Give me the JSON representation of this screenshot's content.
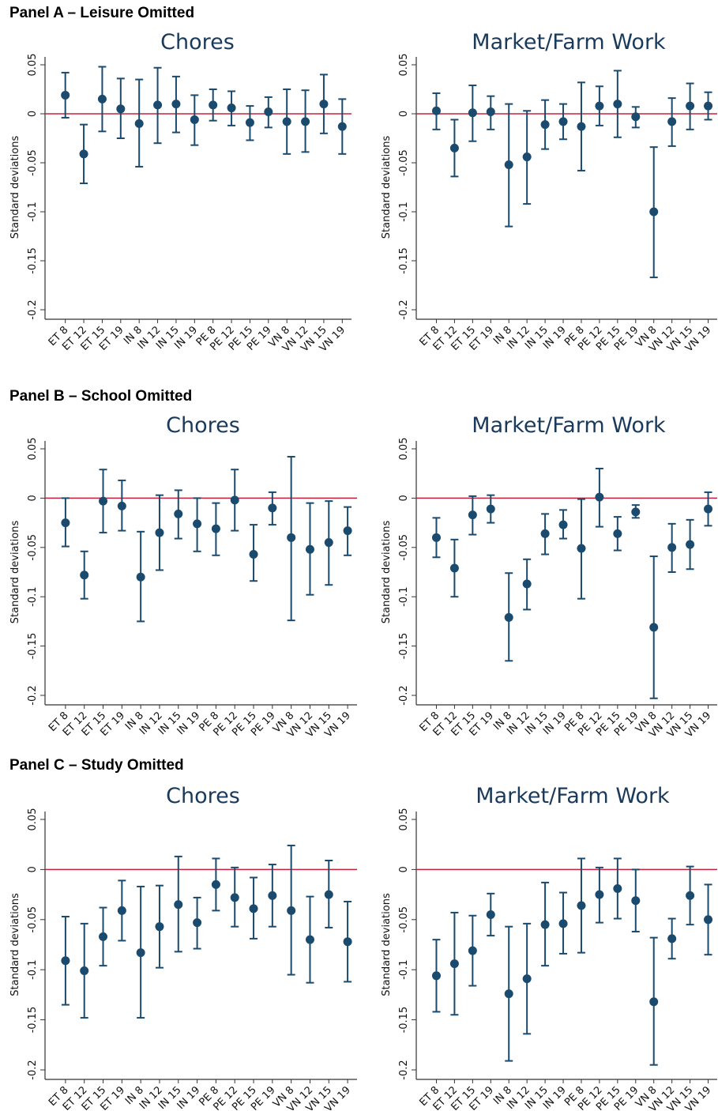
{
  "panels": [
    {
      "label": "Panel A – Leisure Omitted"
    },
    {
      "label": "Panel B – School Omitted"
    },
    {
      "label": "Panel C – Study Omitted"
    }
  ],
  "colors": {
    "marker": "#1a4a6e",
    "zero_line": "#c8203c",
    "axis": "#333333"
  },
  "chart_data": [
    {
      "type": "scatter",
      "panel": "A",
      "title": "Chores",
      "ylabel": "Standard deviations",
      "ylim": [
        -0.2,
        0.05
      ],
      "yticks": [
        "0.05",
        "0",
        "-0.05",
        "-0.1",
        "-0.15",
        "-0.2"
      ],
      "categories": [
        "ET 8",
        "ET 12",
        "ET 15",
        "ET 19",
        "IN 8",
        "IN 12",
        "IN 15",
        "IN 19",
        "PE 8",
        "PE 12",
        "PE 15",
        "PE 19",
        "VN 8",
        "VN 12",
        "VN 15",
        "VN 19"
      ],
      "estimate": [
        0.019,
        -0.041,
        0.015,
        0.005,
        -0.01,
        0.009,
        0.01,
        -0.006,
        0.009,
        0.006,
        -0.009,
        0.002,
        -0.008,
        -0.008,
        0.01,
        -0.013
      ],
      "ci_low": [
        -0.004,
        -0.071,
        -0.018,
        -0.025,
        -0.054,
        -0.03,
        -0.019,
        -0.032,
        -0.007,
        -0.012,
        -0.027,
        -0.014,
        -0.041,
        -0.039,
        -0.02,
        -0.041
      ],
      "ci_high": [
        0.042,
        -0.011,
        0.048,
        0.036,
        0.035,
        0.047,
        0.038,
        0.019,
        0.025,
        0.023,
        0.008,
        0.017,
        0.025,
        0.024,
        0.04,
        0.015
      ]
    },
    {
      "type": "scatter",
      "panel": "A",
      "title": "Market/Farm Work",
      "ylabel": "Standard deviations",
      "ylim": [
        -0.2,
        0.05
      ],
      "yticks": [
        "0.05",
        "0",
        "-0.05",
        "-0.1",
        "-0.15",
        "-0.2"
      ],
      "categories": [
        "ET 8",
        "ET 12",
        "ET 15",
        "ET 19",
        "IN 8",
        "IN 12",
        "IN 15",
        "IN 19",
        "PE 8",
        "PE 12",
        "PE 15",
        "PE 19",
        "VN 8",
        "VN 12",
        "VN 15",
        "VN 19"
      ],
      "estimate": [
        0.003,
        -0.035,
        0.001,
        0.002,
        -0.052,
        -0.044,
        -0.011,
        -0.008,
        -0.013,
        0.008,
        0.01,
        -0.003,
        -0.1,
        -0.008,
        0.008,
        0.008
      ],
      "ci_low": [
        -0.016,
        -0.064,
        -0.028,
        -0.016,
        -0.115,
        -0.092,
        -0.036,
        -0.026,
        -0.058,
        -0.012,
        -0.024,
        -0.014,
        -0.167,
        -0.033,
        -0.016,
        -0.006
      ],
      "ci_high": [
        0.021,
        -0.006,
        0.029,
        0.018,
        0.01,
        0.003,
        0.014,
        0.01,
        0.032,
        0.028,
        0.044,
        0.007,
        -0.034,
        0.016,
        0.031,
        0.022
      ]
    },
    {
      "type": "scatter",
      "panel": "B",
      "title": "Chores",
      "ylabel": "Standard deviations",
      "ylim": [
        -0.2,
        0.05
      ],
      "yticks": [
        "0.05",
        "0",
        "-0.05",
        "-0.1",
        "-0.15",
        "-0.2"
      ],
      "categories": [
        "ET 8",
        "ET 12",
        "ET 15",
        "ET 19",
        "IN 8",
        "IN 12",
        "IN 15",
        "IN 19",
        "PE 8",
        "PE 12",
        "PE 15",
        "PE 19",
        "VN 8",
        "VN 12",
        "VN 15",
        "VN 19"
      ],
      "estimate": [
        -0.025,
        -0.078,
        -0.003,
        -0.008,
        -0.08,
        -0.035,
        -0.016,
        -0.026,
        -0.031,
        -0.002,
        -0.057,
        -0.01,
        -0.04,
        -0.052,
        -0.045,
        -0.033
      ],
      "ci_low": [
        -0.049,
        -0.102,
        -0.035,
        -0.033,
        -0.125,
        -0.073,
        -0.041,
        -0.054,
        -0.058,
        -0.033,
        -0.084,
        -0.027,
        -0.124,
        -0.098,
        -0.088,
        -0.058
      ],
      "ci_high": [
        0.0,
        -0.054,
        0.029,
        0.018,
        -0.034,
        0.003,
        0.008,
        0.0,
        -0.005,
        0.029,
        -0.027,
        0.006,
        0.042,
        -0.005,
        -0.003,
        -0.009
      ]
    },
    {
      "type": "scatter",
      "panel": "B",
      "title": "Market/Farm Work",
      "ylabel": "Standard deviations",
      "ylim": [
        -0.2,
        0.05
      ],
      "yticks": [
        "0.05",
        "0",
        "-0.05",
        "-0.1",
        "-0.15",
        "-0.2"
      ],
      "categories": [
        "ET 8",
        "ET 12",
        "ET 15",
        "ET 19",
        "IN 8",
        "IN 12",
        "IN 15",
        "IN 19",
        "PE 8",
        "PE 12",
        "PE 15",
        "PE 19",
        "VN 8",
        "VN 12",
        "VN 15",
        "VN 19"
      ],
      "estimate": [
        -0.04,
        -0.071,
        -0.017,
        -0.011,
        -0.121,
        -0.087,
        -0.036,
        -0.027,
        -0.051,
        0.001,
        -0.036,
        -0.014,
        -0.131,
        -0.05,
        -0.047,
        -0.011
      ],
      "ci_low": [
        -0.06,
        -0.1,
        -0.037,
        -0.025,
        -0.165,
        -0.113,
        -0.057,
        -0.041,
        -0.102,
        -0.029,
        -0.053,
        -0.02,
        -0.203,
        -0.075,
        -0.072,
        -0.028
      ],
      "ci_high": [
        -0.02,
        -0.042,
        0.002,
        0.003,
        -0.076,
        -0.062,
        -0.016,
        -0.012,
        -0.001,
        0.03,
        -0.019,
        -0.007,
        -0.059,
        -0.026,
        -0.022,
        0.006
      ]
    },
    {
      "type": "scatter",
      "panel": "C",
      "title": "Chores",
      "ylabel": "Standard deviations",
      "ylim": [
        -0.2,
        0.05
      ],
      "yticks": [
        "0.05",
        "0",
        "-0.05",
        "-0.1",
        "-0.15",
        "-0.2"
      ],
      "categories": [
        "ET 8",
        "ET 12",
        "ET 15",
        "ET 19",
        "IN 8",
        "IN 12",
        "IN 15",
        "IN 19",
        "PE 8",
        "PE 12",
        "PE 15",
        "PE 19",
        "VN 8",
        "VN 12",
        "VN 15",
        "VN 19"
      ],
      "estimate": [
        -0.091,
        -0.101,
        -0.067,
        -0.041,
        -0.083,
        -0.057,
        -0.035,
        -0.053,
        -0.015,
        -0.028,
        -0.039,
        -0.026,
        -0.041,
        -0.07,
        -0.025,
        -0.072
      ],
      "ci_low": [
        -0.135,
        -0.148,
        -0.096,
        -0.071,
        -0.148,
        -0.098,
        -0.082,
        -0.079,
        -0.041,
        -0.057,
        -0.069,
        -0.057,
        -0.105,
        -0.113,
        -0.058,
        -0.112
      ],
      "ci_high": [
        -0.047,
        -0.054,
        -0.038,
        -0.011,
        -0.017,
        -0.016,
        0.013,
        -0.028,
        0.011,
        0.002,
        -0.008,
        0.005,
        0.024,
        -0.027,
        0.009,
        -0.032
      ]
    },
    {
      "type": "scatter",
      "panel": "C",
      "title": "Market/Farm Work",
      "ylabel": "Standard deviations",
      "ylim": [
        -0.2,
        0.05
      ],
      "yticks": [
        "0.05",
        "0",
        "-0.05",
        "-0.1",
        "-0.15",
        "-0.2"
      ],
      "categories": [
        "ET 8",
        "ET 12",
        "ET 15",
        "ET 19",
        "IN 8",
        "IN 12",
        "IN 15",
        "IN 19",
        "PE 8",
        "PE 12",
        "PE 15",
        "PE 19",
        "VN 8",
        "VN 12",
        "VN 15",
        "VN 19"
      ],
      "estimate": [
        -0.106,
        -0.094,
        -0.081,
        -0.045,
        -0.124,
        -0.109,
        -0.055,
        -0.054,
        -0.036,
        -0.025,
        -0.019,
        -0.031,
        -0.132,
        -0.069,
        -0.026,
        -0.05
      ],
      "ci_low": [
        -0.142,
        -0.145,
        -0.116,
        -0.066,
        -0.191,
        -0.164,
        -0.096,
        -0.084,
        -0.083,
        -0.053,
        -0.049,
        -0.062,
        -0.195,
        -0.089,
        -0.055,
        -0.085
      ],
      "ci_high": [
        -0.07,
        -0.043,
        -0.046,
        -0.024,
        -0.057,
        -0.054,
        -0.013,
        -0.023,
        0.011,
        0.002,
        0.011,
        0.0,
        -0.068,
        -0.049,
        0.003,
        -0.015
      ]
    }
  ]
}
